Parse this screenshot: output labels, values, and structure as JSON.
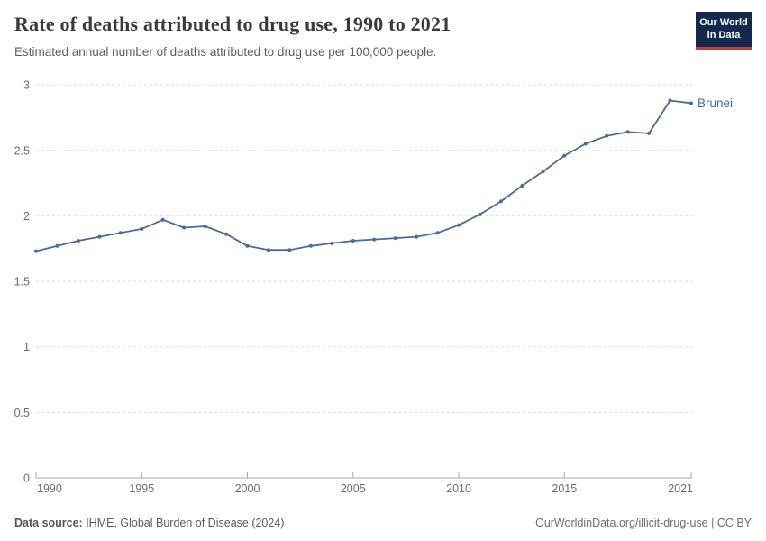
{
  "header": {
    "title": "Rate of deaths attributed to drug use, 1990 to 2021",
    "subtitle": "Estimated annual number of deaths attributed to drug use per 100,000 people."
  },
  "logo": {
    "line1": "Our World",
    "line2": "in Data",
    "bg_color": "#12294D",
    "accent_color": "#C43B3C"
  },
  "chart_data": {
    "type": "line",
    "title": "Rate of deaths attributed to drug use, 1990 to 2021",
    "xlabel": "",
    "ylabel": "",
    "xlim": [
      1990,
      2021
    ],
    "ylim": [
      0,
      3
    ],
    "x_ticks": [
      1990,
      1995,
      2000,
      2005,
      2010,
      2015,
      2021
    ],
    "y_ticks": [
      0,
      0.5,
      1,
      1.5,
      2,
      2.5,
      3
    ],
    "grid": "horizontal-dashed",
    "legend_position": "end-of-line",
    "series": [
      {
        "name": "Brunei",
        "color": "#4C6A9C",
        "x": [
          1990,
          1991,
          1992,
          1993,
          1994,
          1995,
          1996,
          1997,
          1998,
          1999,
          2000,
          2001,
          2002,
          2003,
          2004,
          2005,
          2006,
          2007,
          2008,
          2009,
          2010,
          2011,
          2012,
          2013,
          2014,
          2015,
          2016,
          2017,
          2018,
          2019,
          2020,
          2021
        ],
        "values": [
          1.73,
          1.77,
          1.81,
          1.84,
          1.87,
          1.9,
          1.97,
          1.91,
          1.92,
          1.86,
          1.77,
          1.74,
          1.74,
          1.77,
          1.79,
          1.81,
          1.82,
          1.83,
          1.84,
          1.87,
          1.93,
          2.01,
          2.11,
          2.23,
          2.34,
          2.46,
          2.55,
          2.61,
          2.64,
          2.63,
          2.88,
          2.86
        ]
      }
    ],
    "colors": {
      "gridline": "#dddddd",
      "axis_line": "#a8a8a8",
      "tick_label": "#6e6e6e"
    }
  },
  "footer": {
    "source_label": "Data source:",
    "source_text": " IHME, Global Burden of Disease (2024)",
    "link_text": "OurWorldinData.org/illicit-drug-use | CC BY"
  }
}
